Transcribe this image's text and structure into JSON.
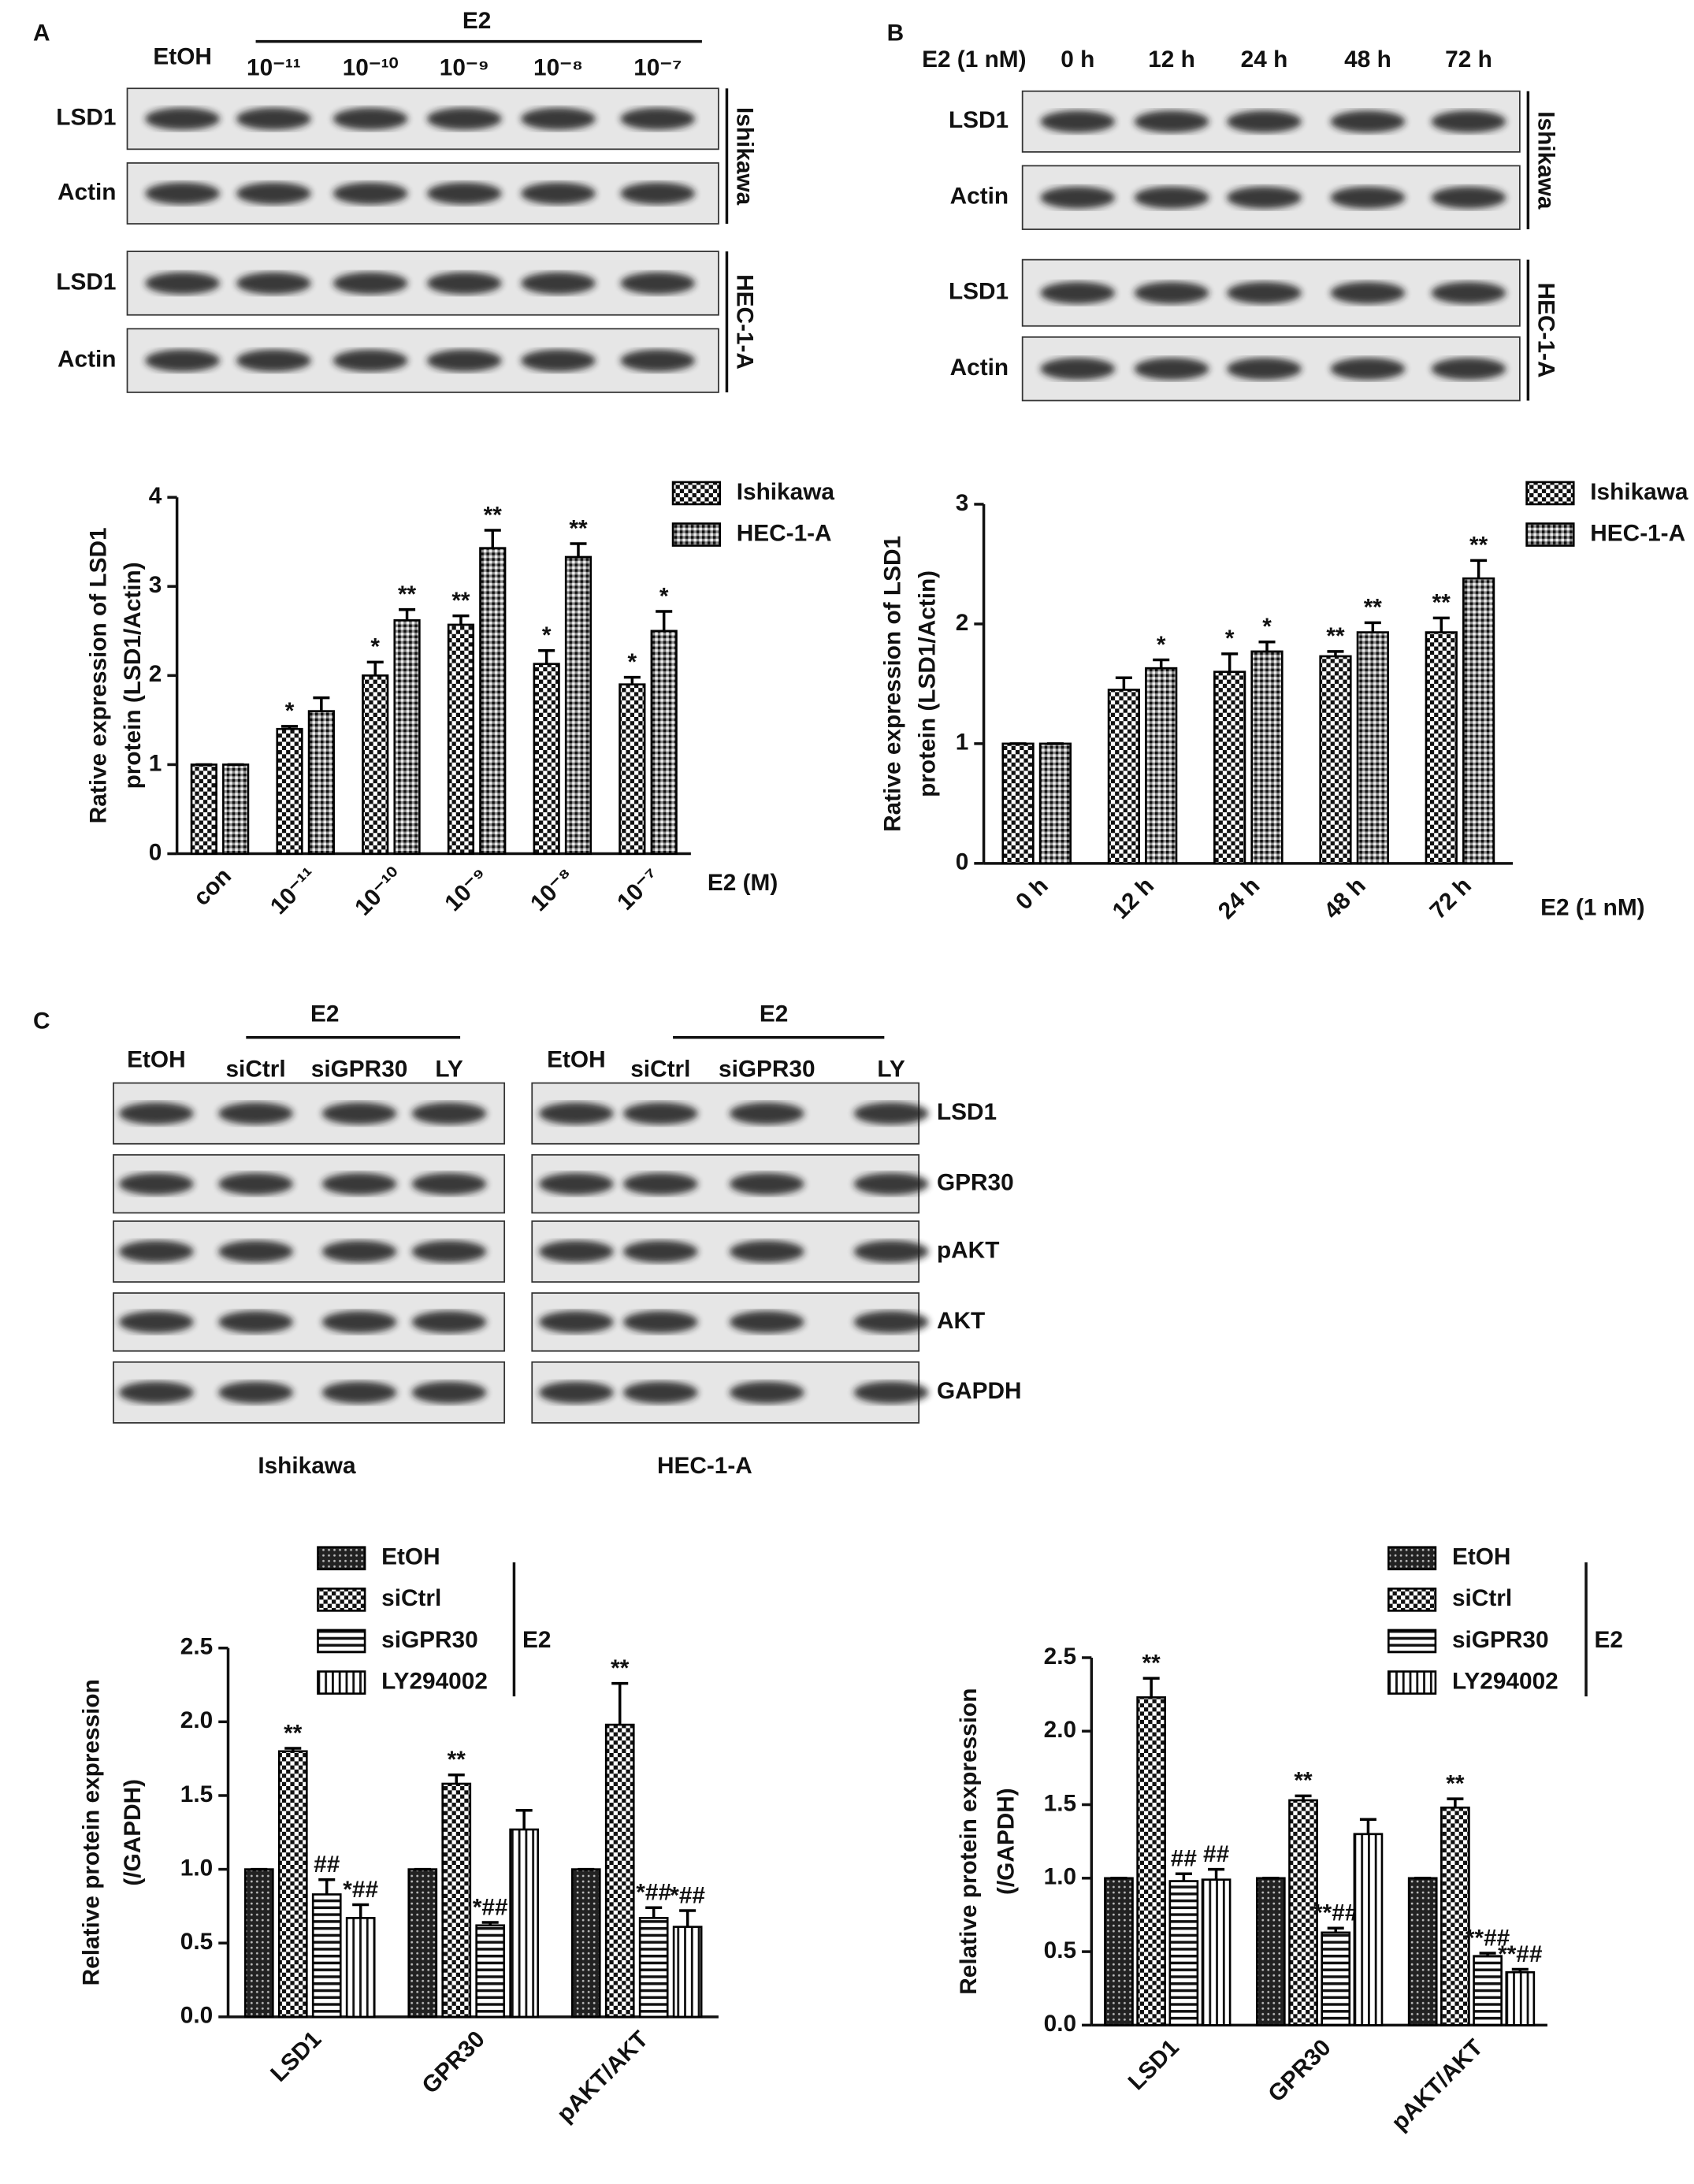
{
  "blots": [
    {
      "label": "A",
      "treatment": "E2",
      "lanes": [
        "EtOH",
        "10⁻¹¹",
        "10⁻¹⁰",
        "10⁻⁹",
        "10⁻⁸",
        "10⁻⁷"
      ],
      "rows": [
        "LSD1",
        "Actin",
        "LSD1",
        "Actin"
      ],
      "cell_lines": [
        "Ishikawa",
        "HEC-1-A"
      ]
    },
    {
      "label": "B",
      "treatment": "E2 (1 nM)",
      "lanes": [
        "0 h",
        "12 h",
        "24 h",
        "48 h",
        "72 h"
      ],
      "rows": [
        "LSD1",
        "Actin",
        "LSD1",
        "Actin"
      ],
      "cell_lines": [
        "Ishikawa",
        "HEC-1-A"
      ]
    },
    {
      "label": "C",
      "rows": [
        "LSD1",
        "GPR30",
        "pAKT",
        "AKT",
        "GAPDH"
      ],
      "sets": [
        {
          "treatment": "E2",
          "lanes": [
            "EtOH",
            "siCtrl",
            "siGPR30",
            "LY"
          ],
          "cell_line": "Ishikawa"
        },
        {
          "treatment": "E2",
          "lanes": [
            "EtOH",
            "siCtrl",
            "siGPR30",
            "LY"
          ],
          "cell_line": "HEC-1-A"
        }
      ]
    }
  ],
  "chart_data": [
    {
      "type": "bar",
      "y_label": [
        "Rative expression of LSD1",
        "protein (LSD1/Actin)"
      ],
      "x_label": "E2 (M)",
      "categories": [
        "con",
        "10⁻¹¹",
        "10⁻¹⁰",
        "10⁻⁹",
        "10⁻⁸",
        "10⁻⁷"
      ],
      "series": [
        {
          "name": "Ishikawa",
          "color": "#000000",
          "pattern": "checker",
          "values": [
            1,
            1.4,
            2.0,
            2.57,
            2.13,
            1.9
          ],
          "errors": [
            0,
            0.03,
            0.15,
            0.1,
            0.15,
            0.08
          ],
          "annotations": [
            null,
            "*",
            "*",
            "**",
            "*",
            "*"
          ]
        },
        {
          "name": "HEC-1-A",
          "color": "#000000",
          "pattern": "hatch",
          "values": [
            1,
            1.6,
            2.62,
            3.43,
            3.33,
            2.5
          ],
          "errors": [
            0,
            0.15,
            0.12,
            0.2,
            0.15,
            0.22
          ],
          "annotations": [
            null,
            null,
            "**",
            "**",
            "**",
            "*"
          ]
        }
      ],
      "ylim": [
        0,
        4
      ],
      "yticks": [
        0,
        1,
        2,
        3,
        4
      ]
    },
    {
      "type": "bar",
      "y_label": [
        "Rative expression of LSD1",
        "protein (LSD1/Actin)"
      ],
      "x_label": "E2 (1 nM)",
      "categories": [
        "0 h",
        "12 h",
        "24 h",
        "48 h",
        "72 h"
      ],
      "series": [
        {
          "name": "Ishikawa",
          "color": "#000000",
          "pattern": "checker",
          "values": [
            1,
            1.45,
            1.6,
            1.73,
            1.93
          ],
          "errors": [
            0,
            0.1,
            0.15,
            0.04,
            0.12
          ],
          "annotations": [
            null,
            null,
            "*",
            "**",
            "**"
          ]
        },
        {
          "name": "HEC-1-A",
          "color": "#000000",
          "pattern": "hatch",
          "values": [
            1,
            1.63,
            1.77,
            1.93,
            2.38
          ],
          "errors": [
            0,
            0.07,
            0.08,
            0.08,
            0.15
          ],
          "annotations": [
            null,
            "*",
            "*",
            "**",
            "**"
          ]
        }
      ],
      "ylim": [
        0,
        3
      ],
      "yticks": [
        0,
        1,
        2,
        3
      ]
    },
    {
      "type": "bar",
      "y_label": [
        "Relative protein expression",
        "(/GAPDH)"
      ],
      "group_label": "E2",
      "categories": [
        "LSD1",
        "GPR30",
        "pAKT/AKT"
      ],
      "series": [
        {
          "name": "EtOH",
          "color": "#000000",
          "pattern": "dots",
          "values": [
            1,
            1,
            1
          ],
          "errors": [
            0,
            0,
            0
          ],
          "annotations": [
            null,
            null,
            null
          ]
        },
        {
          "name": "siCtrl",
          "color": "#000000",
          "pattern": "checker",
          "values": [
            1.8,
            1.58,
            1.98
          ],
          "errors": [
            0.02,
            0.06,
            0.28
          ],
          "annotations": [
            "**",
            "**",
            "**"
          ]
        },
        {
          "name": "siGPR30",
          "color": "#000000",
          "pattern": "hstripe",
          "values": [
            0.83,
            0.62,
            0.67
          ],
          "errors": [
            0.1,
            0.02,
            0.07
          ],
          "annotations": [
            "##",
            "*##",
            "*##"
          ]
        },
        {
          "name": "LY294002",
          "color": "#000000",
          "pattern": "vstripe",
          "values": [
            0.67,
            1.27,
            0.61
          ],
          "errors": [
            0.09,
            0.13,
            0.11
          ],
          "annotations": [
            "*##",
            null,
            "*##"
          ]
        }
      ],
      "ylim": [
        0,
        2.5
      ],
      "yticks": [
        {
          "value": 0,
          "label": "0.0"
        },
        0.5,
        {
          "value": 1,
          "label": "1.0"
        },
        1.5,
        {
          "value": 2,
          "label": "2.0"
        },
        2.5
      ]
    },
    {
      "type": "bar",
      "y_label": [
        "Relative protein expression",
        "(/GAPDH)"
      ],
      "group_label": "E2",
      "categories": [
        "LSD1",
        "GPR30",
        "pAKT/AKT"
      ],
      "series": [
        {
          "name": "EtOH",
          "color": "#000000",
          "pattern": "dots",
          "values": [
            1,
            1,
            1
          ],
          "errors": [
            0,
            0,
            0
          ],
          "annotations": [
            null,
            null,
            null
          ]
        },
        {
          "name": "siCtrl",
          "color": "#000000",
          "pattern": "checker",
          "values": [
            2.23,
            1.53,
            1.48
          ],
          "errors": [
            0.13,
            0.03,
            0.06
          ],
          "annotations": [
            "**",
            "**",
            "**"
          ]
        },
        {
          "name": "siGPR30",
          "color": "#000000",
          "pattern": "hstripe",
          "values": [
            0.98,
            0.63,
            0.47
          ],
          "errors": [
            0.05,
            0.03,
            0.02
          ],
          "annotations": [
            "##",
            "**##",
            "**##"
          ]
        },
        {
          "name": "LY294002",
          "color": "#000000",
          "pattern": "vstripe",
          "values": [
            0.99,
            1.3,
            0.36
          ],
          "errors": [
            0.07,
            0.1,
            0.02
          ],
          "annotations": [
            "##",
            null,
            "**##"
          ]
        }
      ],
      "ylim": [
        0,
        2.5
      ],
      "yticks": [
        {
          "value": 0,
          "label": "0.0"
        },
        0.5,
        {
          "value": 1,
          "label": "1.0"
        },
        1.5,
        {
          "value": 2,
          "label": "2.0"
        },
        2.5
      ]
    }
  ]
}
